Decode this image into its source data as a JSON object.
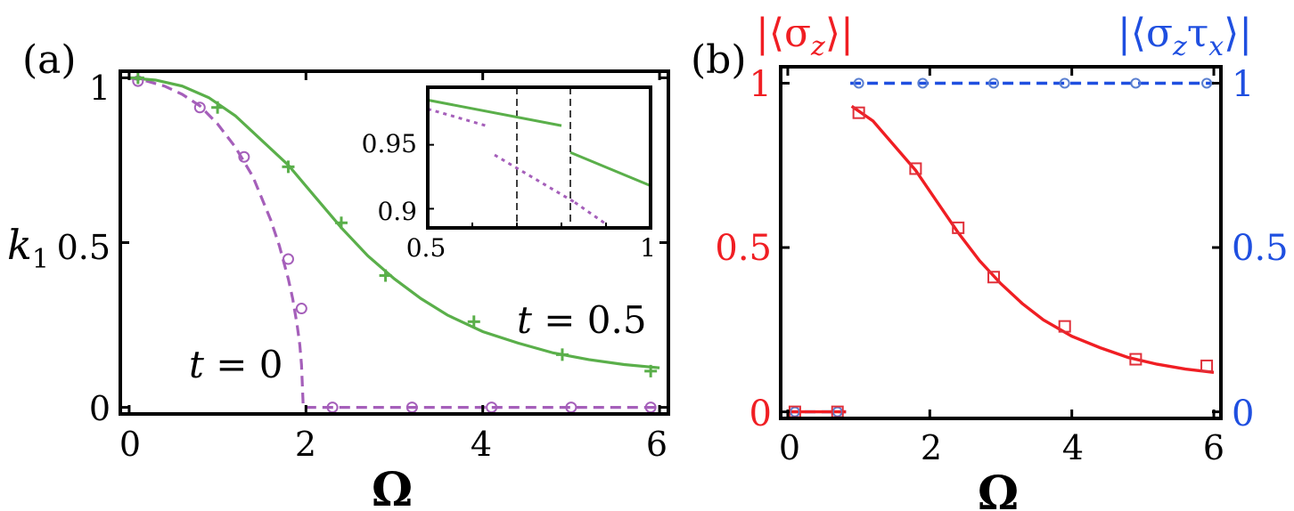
{
  "colors": {
    "green": "#5aaf4a",
    "purple": "#a55fba",
    "red": "#f01e23",
    "blue": "#1f4fe0",
    "marker_red": "#e0303a",
    "marker_blue": "#5a7fd0",
    "axis": "#000000"
  },
  "panel_a": {
    "label": "(a)",
    "xlabel": "Ω",
    "ylabel": "k",
    "ylabel_sub": "1",
    "x_ticks": [
      "0",
      "2",
      "4",
      "6"
    ],
    "y_ticks": [
      "0",
      "0.5",
      "1"
    ],
    "annotations": {
      "t0_var": "t",
      "t0_rest": " = 0",
      "t05_var": "t",
      "t05_rest": " = 0.5"
    },
    "inset": {
      "x_ticks": [
        "0.5",
        "1"
      ],
      "y_ticks": [
        "0.9",
        "0.95"
      ]
    }
  },
  "panel_b": {
    "label": "(b)",
    "xlabel": "Ω",
    "left_axis_title": "|⟨σ",
    "left_axis_title_sub": "z",
    "left_axis_title_end": "⟩|",
    "right_axis_title": "|⟨σ",
    "right_axis_title_sub1": "z",
    "right_axis_title_mid": "τ",
    "right_axis_title_sub2": "x",
    "right_axis_title_end": "⟩|",
    "x_ticks": [
      "0",
      "2",
      "4",
      "6"
    ],
    "y_ticks_left": [
      "0",
      "0.5",
      "1"
    ],
    "y_ticks_right": [
      "0",
      "0.5",
      "1"
    ]
  },
  "chart_data": [
    {
      "type": "line",
      "panel": "a",
      "xlim": [
        -0.1,
        6.1
      ],
      "ylim": [
        -0.02,
        1.02
      ],
      "grid": false,
      "series": [
        {
          "name": "t = 0",
          "style": "dashed",
          "color": "purple",
          "curve": {
            "x": [
              0.0,
              0.2,
              0.4,
              0.6,
              0.8,
              1.0,
              1.2,
              1.4,
              1.6,
              1.7,
              1.8,
              1.85,
              1.9,
              1.93,
              1.95,
              1.97,
              2.0,
              3.0,
              4.0,
              5.0,
              6.0
            ],
            "y": [
              1.0,
              0.99,
              0.975,
              0.95,
              0.915,
              0.86,
              0.79,
              0.7,
              0.57,
              0.49,
              0.39,
              0.33,
              0.25,
              0.19,
              0.13,
              0.0,
              0.0,
              0.0,
              0.0,
              0.0,
              0.0
            ]
          },
          "markers": {
            "shape": "circle",
            "x": [
              0.1,
              0.8,
              1.3,
              1.8,
              1.95,
              2.3,
              3.2,
              4.1,
              5.0,
              5.9
            ],
            "y": [
              0.99,
              0.91,
              0.76,
              0.45,
              0.3,
              0.0,
              0.0,
              0.0,
              0.0,
              0.0
            ]
          }
        },
        {
          "name": "t = 0.5",
          "style": "solid",
          "color": "green",
          "curve": {
            "x": [
              0.0,
              0.3,
              0.6,
              0.9,
              1.2,
              1.5,
              1.8,
              2.1,
              2.4,
              2.7,
              3.0,
              3.3,
              3.6,
              4.0,
              4.4,
              4.8,
              5.2,
              5.6,
              6.0
            ],
            "y": [
              1.0,
              0.993,
              0.975,
              0.94,
              0.885,
              0.81,
              0.735,
              0.64,
              0.545,
              0.46,
              0.39,
              0.33,
              0.28,
              0.23,
              0.195,
              0.165,
              0.145,
              0.13,
              0.12
            ]
          },
          "markers": {
            "shape": "plus",
            "x": [
              0.1,
              1.0,
              1.8,
              2.4,
              2.9,
              3.9,
              4.9,
              5.9
            ],
            "y": [
              1.0,
              0.91,
              0.73,
              0.56,
              0.4,
              0.26,
              0.16,
              0.11
            ]
          }
        }
      ],
      "inset": {
        "xlim": [
          0.5,
          1.0
        ],
        "ylim": [
          0.885,
          0.995
        ],
        "vlines": [
          0.7,
          0.82
        ],
        "series": [
          {
            "name": "t = 0.5",
            "style": "solid",
            "color": "green",
            "x": [
              0.5,
              0.8
            ],
            "y": [
              0.985,
              0.965
            ]
          },
          {
            "name": "t = 0.5",
            "style": "solid",
            "color": "green",
            "x": [
              0.82,
              1.0
            ],
            "y": [
              0.944,
              0.918
            ]
          },
          {
            "name": "t = 0",
            "style": "dotted",
            "color": "purple",
            "x": [
              0.5,
              0.63
            ],
            "y": [
              0.978,
              0.965
            ]
          },
          {
            "name": "t = 0",
            "style": "dotted",
            "color": "purple",
            "x": [
              0.65,
              0.83
            ],
            "y": [
              0.942,
              0.905
            ]
          },
          {
            "name": "t = 0",
            "style": "dotted",
            "color": "purple",
            "x": [
              0.83,
              0.9
            ],
            "y": [
              0.905,
              0.888
            ]
          }
        ]
      }
    },
    {
      "type": "line",
      "panel": "b",
      "xlim": [
        -0.1,
        6.1
      ],
      "ylim": [
        -0.02,
        1.05
      ],
      "grid": false,
      "series": [
        {
          "name": "|⟨σzτx⟩|",
          "axis": "right",
          "style": "dashed",
          "color": "blue",
          "segments": [
            {
              "x": [
                0.0,
                0.82
              ],
              "y": [
                0.0,
                0.0
              ]
            },
            {
              "x": [
                0.88,
                6.0
              ],
              "y": [
                1.0,
                1.0
              ]
            }
          ],
          "markers": {
            "shape": "circle",
            "x": [
              0.1,
              0.7,
              1.0,
              1.9,
              2.9,
              3.9,
              4.9,
              5.9
            ],
            "y": [
              0.0,
              0.0,
              1.0,
              1.0,
              1.0,
              1.0,
              1.0,
              1.0
            ]
          }
        },
        {
          "name": "|⟨σz⟩|",
          "axis": "left",
          "style": "solid",
          "color": "red",
          "segments": [
            {
              "x": [
                0.0,
                0.82
              ],
              "y": [
                0.0,
                0.0
              ]
            },
            {
              "x": [
                0.9,
                1.2,
                1.5,
                1.8,
                2.1,
                2.4,
                2.7,
                3.0,
                3.3,
                3.6,
                4.0,
                4.4,
                4.8,
                5.2,
                5.6,
                6.0
              ],
              "y": [
                0.93,
                0.885,
                0.81,
                0.735,
                0.64,
                0.545,
                0.46,
                0.39,
                0.33,
                0.28,
                0.23,
                0.195,
                0.165,
                0.145,
                0.13,
                0.12
              ]
            }
          ],
          "markers": {
            "shape": "square",
            "x": [
              0.1,
              0.7,
              1.0,
              1.8,
              2.4,
              2.9,
              3.9,
              4.9,
              5.9
            ],
            "y": [
              0.0,
              0.0,
              0.91,
              0.74,
              0.56,
              0.41,
              0.26,
              0.16,
              0.14
            ]
          }
        }
      ]
    }
  ]
}
